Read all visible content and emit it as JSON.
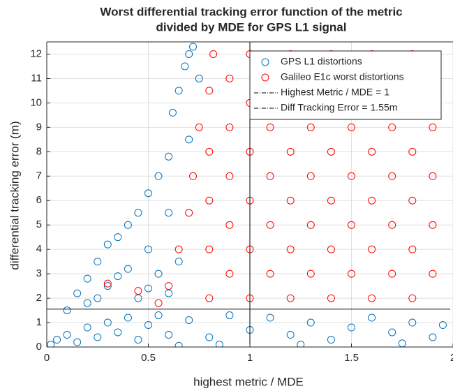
{
  "chart_data": {
    "type": "scatter",
    "title": [
      "Worst differential tracking error function of the metric",
      "divided by MDE for GPS L1 signal"
    ],
    "xlabel": "highest metric / MDE",
    "ylabel": "differential tracking error (m)",
    "xlim": [
      0,
      2
    ],
    "ylim": [
      0,
      12.5
    ],
    "xticks": [
      0,
      0.5,
      1,
      1.5,
      2
    ],
    "yticks": [
      0,
      1,
      2,
      3,
      4,
      5,
      6,
      7,
      8,
      9,
      10,
      11,
      12
    ],
    "grid": true,
    "legend": "northeast",
    "series": [
      {
        "name": "GPS L1 distortions",
        "color": "#0072bd",
        "x": [
          0.02,
          0.05,
          0.1,
          0.15,
          0.2,
          0.25,
          0.3,
          0.35,
          0.4,
          0.45,
          0.5,
          0.55,
          0.6,
          0.7,
          0.8,
          0.9,
          1.0,
          1.1,
          1.2,
          1.3,
          1.4,
          1.5,
          1.6,
          1.7,
          1.8,
          1.9,
          1.95,
          0.85,
          1.25,
          1.75,
          0.65,
          0.1,
          0.15,
          0.2,
          0.25,
          0.3,
          0.35,
          0.4,
          0.45,
          0.5,
          0.55,
          0.6,
          0.62,
          0.65,
          0.68,
          0.7,
          0.72,
          0.3,
          0.4,
          0.45,
          0.5,
          0.55,
          0.6,
          0.2,
          0.35,
          0.5,
          0.6,
          0.65,
          0.7,
          0.75,
          0.25
        ],
        "y": [
          0.1,
          0.3,
          0.5,
          0.2,
          0.8,
          0.4,
          1.0,
          0.6,
          1.2,
          0.3,
          0.9,
          1.3,
          0.5,
          1.1,
          0.4,
          1.3,
          0.7,
          1.2,
          0.5,
          1.0,
          0.3,
          0.8,
          1.2,
          0.6,
          1.0,
          0.4,
          0.9,
          0.1,
          0.1,
          0.15,
          0.05,
          1.5,
          2.2,
          2.8,
          3.5,
          4.2,
          4.5,
          5.0,
          5.5,
          6.3,
          7.0,
          7.8,
          9.6,
          10.5,
          11.5,
          12.0,
          12.3,
          2.5,
          3.2,
          2.0,
          4.0,
          3.0,
          5.5,
          1.8,
          2.9,
          2.4,
          2.2,
          3.5,
          8.5,
          11.0,
          2.0
        ]
      },
      {
        "name": "Galileo E1c worst distortions",
        "color": "#ff0000",
        "x": [
          0.55,
          0.6,
          0.65,
          0.7,
          0.72,
          0.75,
          0.8,
          0.82,
          0.3,
          0.45,
          0.8,
          0.8,
          0.8,
          0.8,
          0.9,
          0.9,
          0.9,
          0.9,
          0.9,
          1.0,
          1.0,
          1.0,
          1.0,
          1.0,
          1.0,
          1.1,
          1.1,
          1.1,
          1.1,
          1.1,
          1.2,
          1.2,
          1.2,
          1.2,
          1.2,
          1.2,
          1.3,
          1.3,
          1.3,
          1.3,
          1.3,
          1.4,
          1.4,
          1.4,
          1.4,
          1.4,
          1.4,
          1.5,
          1.5,
          1.5,
          1.5,
          1.5,
          1.6,
          1.6,
          1.6,
          1.6,
          1.6,
          1.6,
          1.7,
          1.7,
          1.7,
          1.7,
          1.7,
          1.8,
          1.8,
          1.8,
          1.8,
          1.8,
          1.8,
          1.9,
          1.9,
          1.9,
          1.9,
          1.9
        ],
        "y": [
          1.8,
          2.5,
          4.0,
          5.5,
          7.0,
          9.0,
          10.5,
          12.0,
          2.6,
          2.3,
          2,
          4,
          6,
          8,
          3,
          5,
          7,
          9,
          11,
          2,
          4,
          6,
          8,
          10,
          12,
          3,
          5,
          7,
          9,
          11,
          2,
          4,
          6,
          8,
          10,
          12,
          3,
          5,
          7,
          9,
          11,
          2,
          4,
          6,
          8,
          10,
          12,
          3,
          5,
          7,
          9,
          11,
          2,
          4,
          6,
          8,
          10,
          12,
          3,
          5,
          7,
          9,
          11,
          2,
          4,
          6,
          8,
          10,
          12,
          3,
          5,
          7,
          9,
          11
        ]
      }
    ],
    "vlines": [
      {
        "name": "Highest Metric / MDE = 1",
        "x": 1,
        "color": "#000000"
      }
    ],
    "hlines": [
      {
        "name": "Diff Tracking Error = 1.55m",
        "y": 1.55,
        "color": "#000000"
      }
    ]
  }
}
